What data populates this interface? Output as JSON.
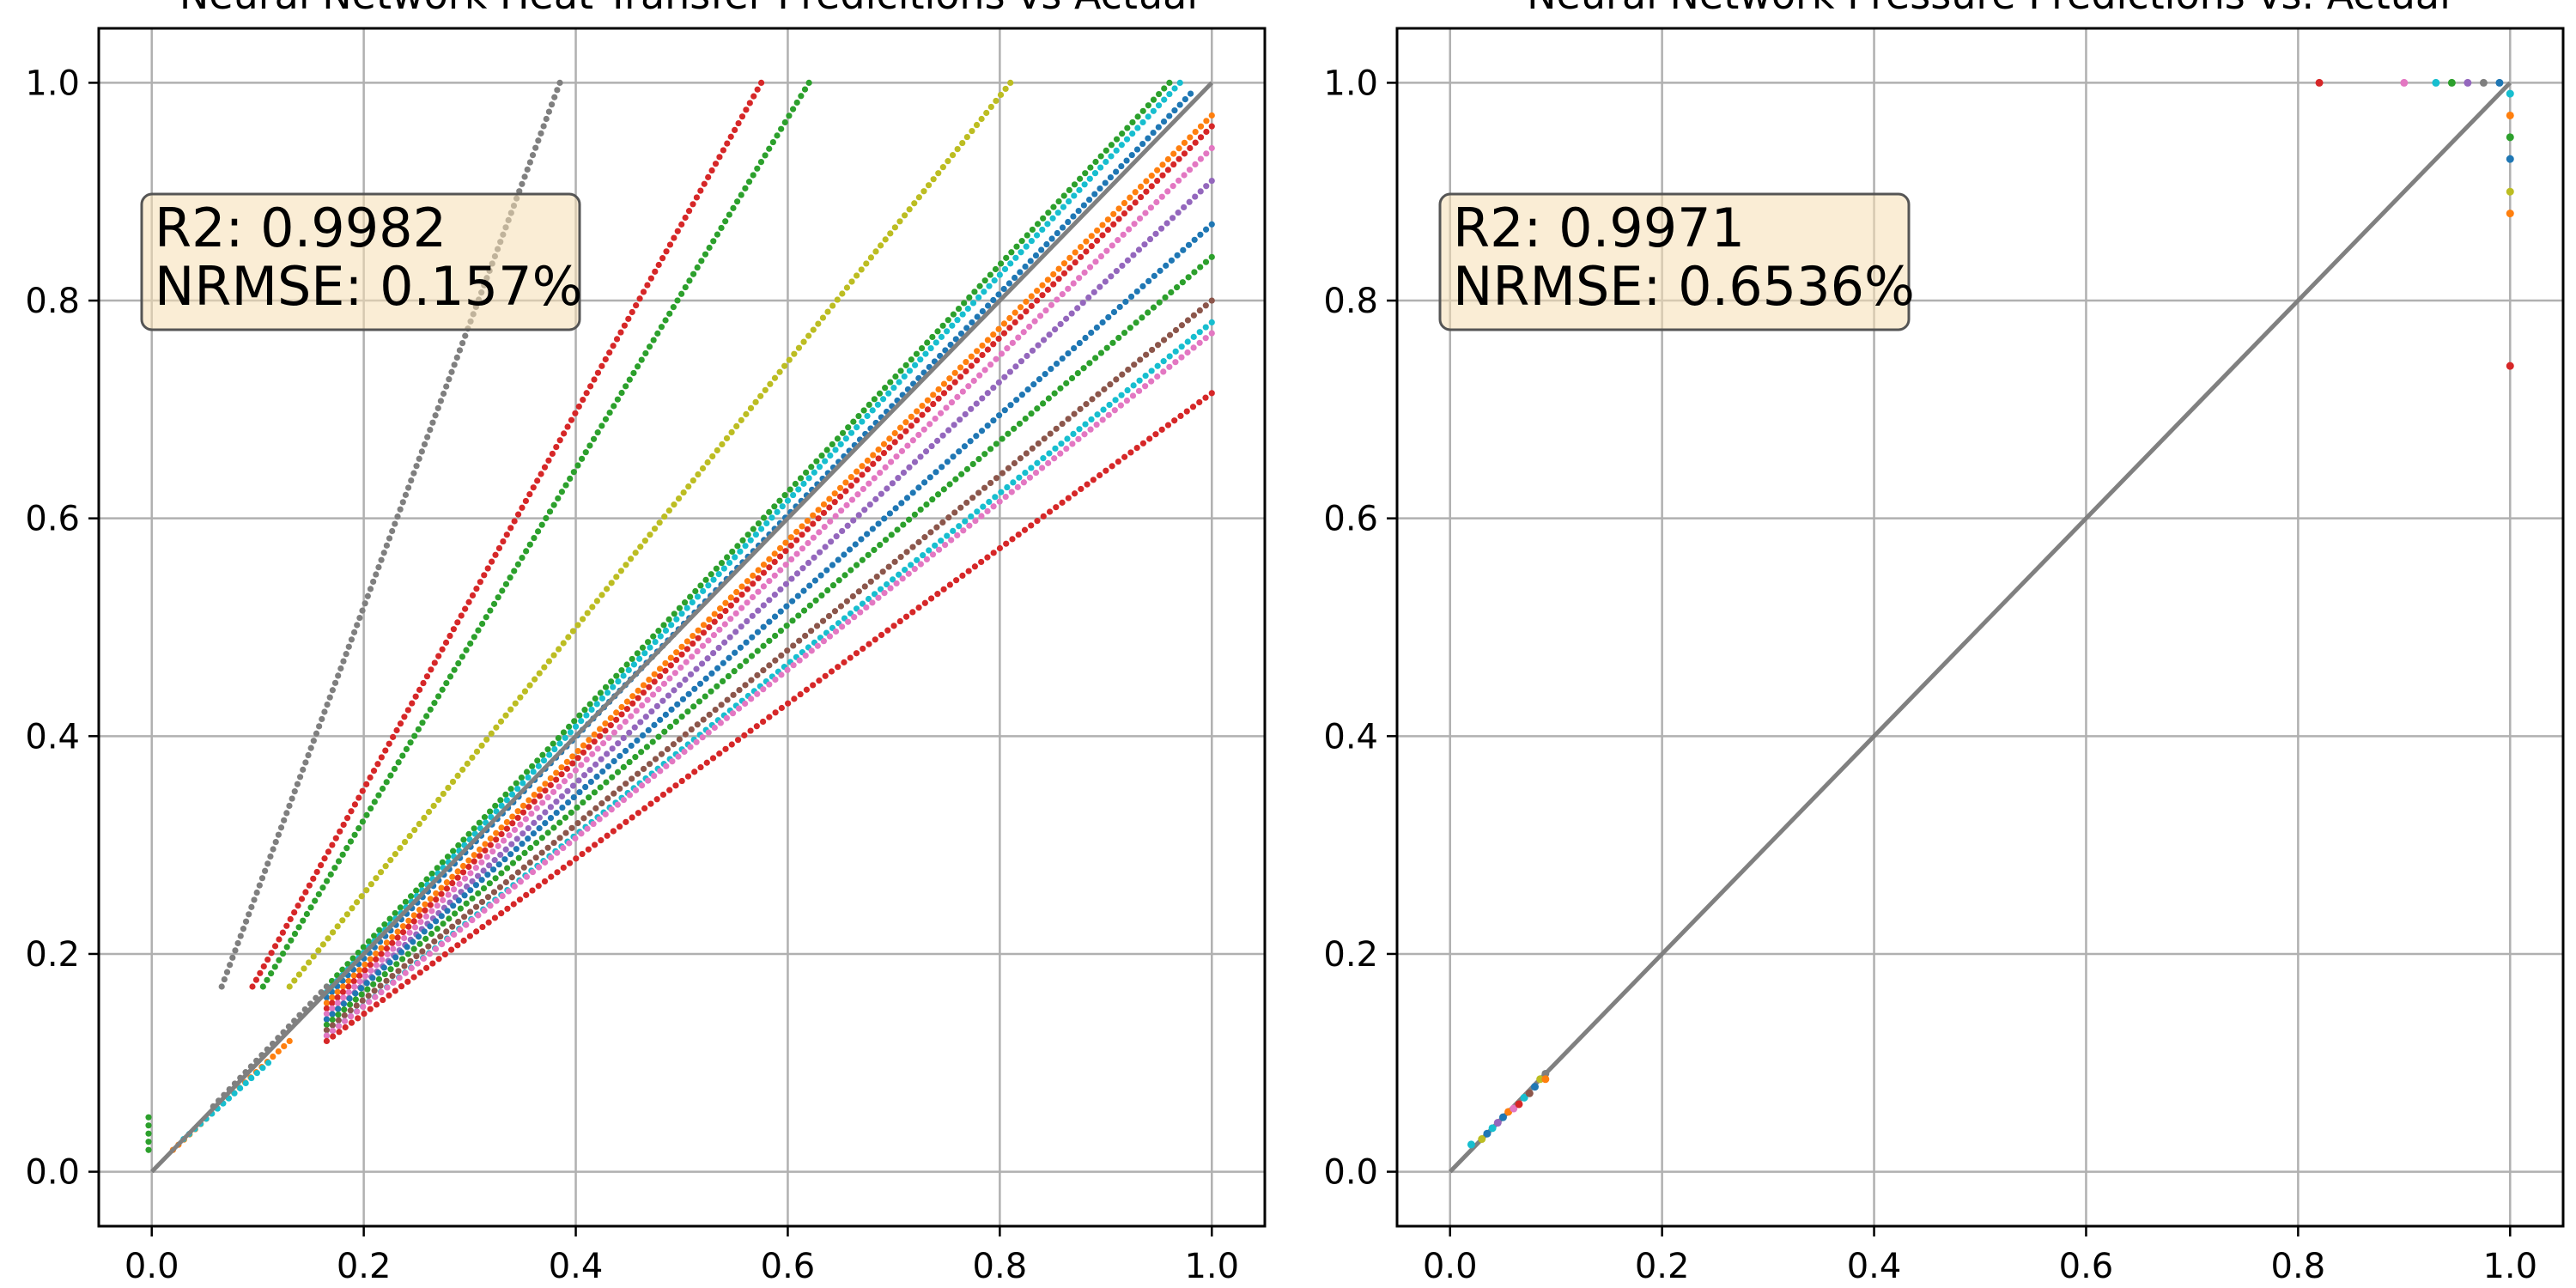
{
  "colors": {
    "grid": "#b0b0b0",
    "identity_line": "#808080",
    "stats_box_fill": "#f5deb3",
    "stats_box_edge": "#555555",
    "palette": [
      "#1f77b4",
      "#ff7f0e",
      "#2ca02c",
      "#d62728",
      "#9467bd",
      "#8c564b",
      "#e377c2",
      "#7f7f7f",
      "#bcbd22",
      "#17becf"
    ]
  },
  "chart_data": [
    {
      "type": "scatter",
      "title": "Neural Network Heat Transfer Predicitions vs Actual",
      "xlabel": "",
      "ylabel": "",
      "xlim": [
        -0.05,
        1.05
      ],
      "ylim": [
        -0.05,
        1.05
      ],
      "xticks": [
        "0.0",
        "0.2",
        "0.4",
        "0.6",
        "0.8",
        "1.0"
      ],
      "yticks": [
        "0.0",
        "0.2",
        "0.4",
        "0.6",
        "0.8",
        "1.0"
      ],
      "grid": true,
      "identity_line": true,
      "stats_box": {
        "line1": "R2: 0.9982",
        "line2": "NRMSE: 0.157%",
        "placement": "upper-left"
      },
      "series": [
        {
          "color": "#7f7f7f",
          "x0": 0.066,
          "y0": 0.17,
          "x1": 0.385,
          "y1": 1.0
        },
        {
          "color": "#d62728",
          "x0": 0.095,
          "y0": 0.17,
          "x1": 0.575,
          "y1": 1.0
        },
        {
          "color": "#2ca02c",
          "x0": 0.105,
          "y0": 0.17,
          "x1": 0.62,
          "y1": 1.0
        },
        {
          "color": "#bcbd22",
          "x0": 0.13,
          "y0": 0.17,
          "x1": 0.81,
          "y1": 1.0
        },
        {
          "color": "#2ca02c",
          "x0": 0.165,
          "y0": 0.17,
          "x1": 0.96,
          "y1": 1.0
        },
        {
          "color": "#17becf",
          "x0": 0.165,
          "y0": 0.165,
          "x1": 0.97,
          "y1": 1.0
        },
        {
          "color": "#1f77b4",
          "x0": 0.165,
          "y0": 0.16,
          "x1": 0.98,
          "y1": 0.99
        },
        {
          "color": "#ff7f0e",
          "x0": 0.165,
          "y0": 0.155,
          "x1": 1.0,
          "y1": 0.97
        },
        {
          "color": "#d62728",
          "x0": 0.165,
          "y0": 0.15,
          "x1": 1.0,
          "y1": 0.96
        },
        {
          "color": "#e377c2",
          "x0": 0.165,
          "y0": 0.145,
          "x1": 1.0,
          "y1": 0.94
        },
        {
          "color": "#9467bd",
          "x0": 0.165,
          "y0": 0.14,
          "x1": 1.0,
          "y1": 0.91
        },
        {
          "color": "#1f77b4",
          "x0": 0.165,
          "y0": 0.14,
          "x1": 1.0,
          "y1": 0.87
        },
        {
          "color": "#2ca02c",
          "x0": 0.165,
          "y0": 0.135,
          "x1": 1.0,
          "y1": 0.84
        },
        {
          "color": "#8c564b",
          "x0": 0.165,
          "y0": 0.13,
          "x1": 1.0,
          "y1": 0.8
        },
        {
          "color": "#17becf",
          "x0": 0.165,
          "y0": 0.125,
          "x1": 1.0,
          "y1": 0.78
        },
        {
          "color": "#e377c2",
          "x0": 0.165,
          "y0": 0.125,
          "x1": 1.0,
          "y1": 0.77
        },
        {
          "color": "#d62728",
          "x0": 0.165,
          "y0": 0.12,
          "x1": 1.0,
          "y1": 0.715
        },
        {
          "color": "#7f7f7f",
          "x0": 0.058,
          "y0": 0.06,
          "x1": 0.165,
          "y1": 0.17
        },
        {
          "color": "#ff7f0e",
          "x0": 0.02,
          "y0": 0.02,
          "x1": 0.13,
          "y1": 0.12
        },
        {
          "color": "#17becf",
          "x0": 0.03,
          "y0": 0.03,
          "x1": 0.11,
          "y1": 0.1
        },
        {
          "color": "#2ca02c",
          "x0": -0.003,
          "y0": 0.02,
          "x1": -0.003,
          "y1": 0.05
        }
      ]
    },
    {
      "type": "scatter",
      "title": "Neural Network Pressure Predictions vs. Actual",
      "xlabel": "",
      "ylabel": "",
      "xlim": [
        -0.05,
        1.05
      ],
      "ylim": [
        -0.05,
        1.05
      ],
      "xticks": [
        "0.0",
        "0.2",
        "0.4",
        "0.6",
        "0.8",
        "1.0"
      ],
      "yticks": [
        "0.0",
        "0.2",
        "0.4",
        "0.6",
        "0.8",
        "1.0"
      ],
      "grid": true,
      "identity_line": true,
      "stats_box": {
        "line1": "R2: 0.9971",
        "line2": "NRMSE: 0.6536%",
        "placement": "upper-left"
      },
      "points": [
        {
          "x": 0.02,
          "y": 0.025,
          "color": "#17becf"
        },
        {
          "x": 0.03,
          "y": 0.03,
          "color": "#bcbd22"
        },
        {
          "x": 0.035,
          "y": 0.035,
          "color": "#1f77b4"
        },
        {
          "x": 0.04,
          "y": 0.04,
          "color": "#17becf"
        },
        {
          "x": 0.045,
          "y": 0.045,
          "color": "#9467bd"
        },
        {
          "x": 0.05,
          "y": 0.05,
          "color": "#1f77b4"
        },
        {
          "x": 0.055,
          "y": 0.055,
          "color": "#ff7f0e"
        },
        {
          "x": 0.06,
          "y": 0.058,
          "color": "#e377c2"
        },
        {
          "x": 0.065,
          "y": 0.062,
          "color": "#d62728"
        },
        {
          "x": 0.07,
          "y": 0.068,
          "color": "#17becf"
        },
        {
          "x": 0.075,
          "y": 0.072,
          "color": "#8c564b"
        },
        {
          "x": 0.08,
          "y": 0.078,
          "color": "#1f77b4"
        },
        {
          "x": 0.085,
          "y": 0.085,
          "color": "#bcbd22"
        },
        {
          "x": 0.09,
          "y": 0.09,
          "color": "#7f7f7f"
        },
        {
          "x": 0.09,
          "y": 0.085,
          "color": "#ff7f0e"
        },
        {
          "x": 0.82,
          "y": 1.0,
          "color": "#d62728"
        },
        {
          "x": 0.9,
          "y": 1.0,
          "color": "#e377c2"
        },
        {
          "x": 0.93,
          "y": 1.0,
          "color": "#17becf"
        },
        {
          "x": 0.945,
          "y": 1.0,
          "color": "#2ca02c"
        },
        {
          "x": 0.96,
          "y": 1.0,
          "color": "#9467bd"
        },
        {
          "x": 0.975,
          "y": 1.0,
          "color": "#7f7f7f"
        },
        {
          "x": 0.99,
          "y": 1.0,
          "color": "#1f77b4"
        },
        {
          "x": 1.0,
          "y": 0.99,
          "color": "#17becf"
        },
        {
          "x": 1.0,
          "y": 0.97,
          "color": "#ff7f0e"
        },
        {
          "x": 1.0,
          "y": 0.95,
          "color": "#2ca02c"
        },
        {
          "x": 1.0,
          "y": 0.93,
          "color": "#1f77b4"
        },
        {
          "x": 1.0,
          "y": 0.9,
          "color": "#bcbd22"
        },
        {
          "x": 1.0,
          "y": 0.88,
          "color": "#ff7f0e"
        },
        {
          "x": 1.0,
          "y": 0.74,
          "color": "#d62728"
        }
      ]
    }
  ]
}
